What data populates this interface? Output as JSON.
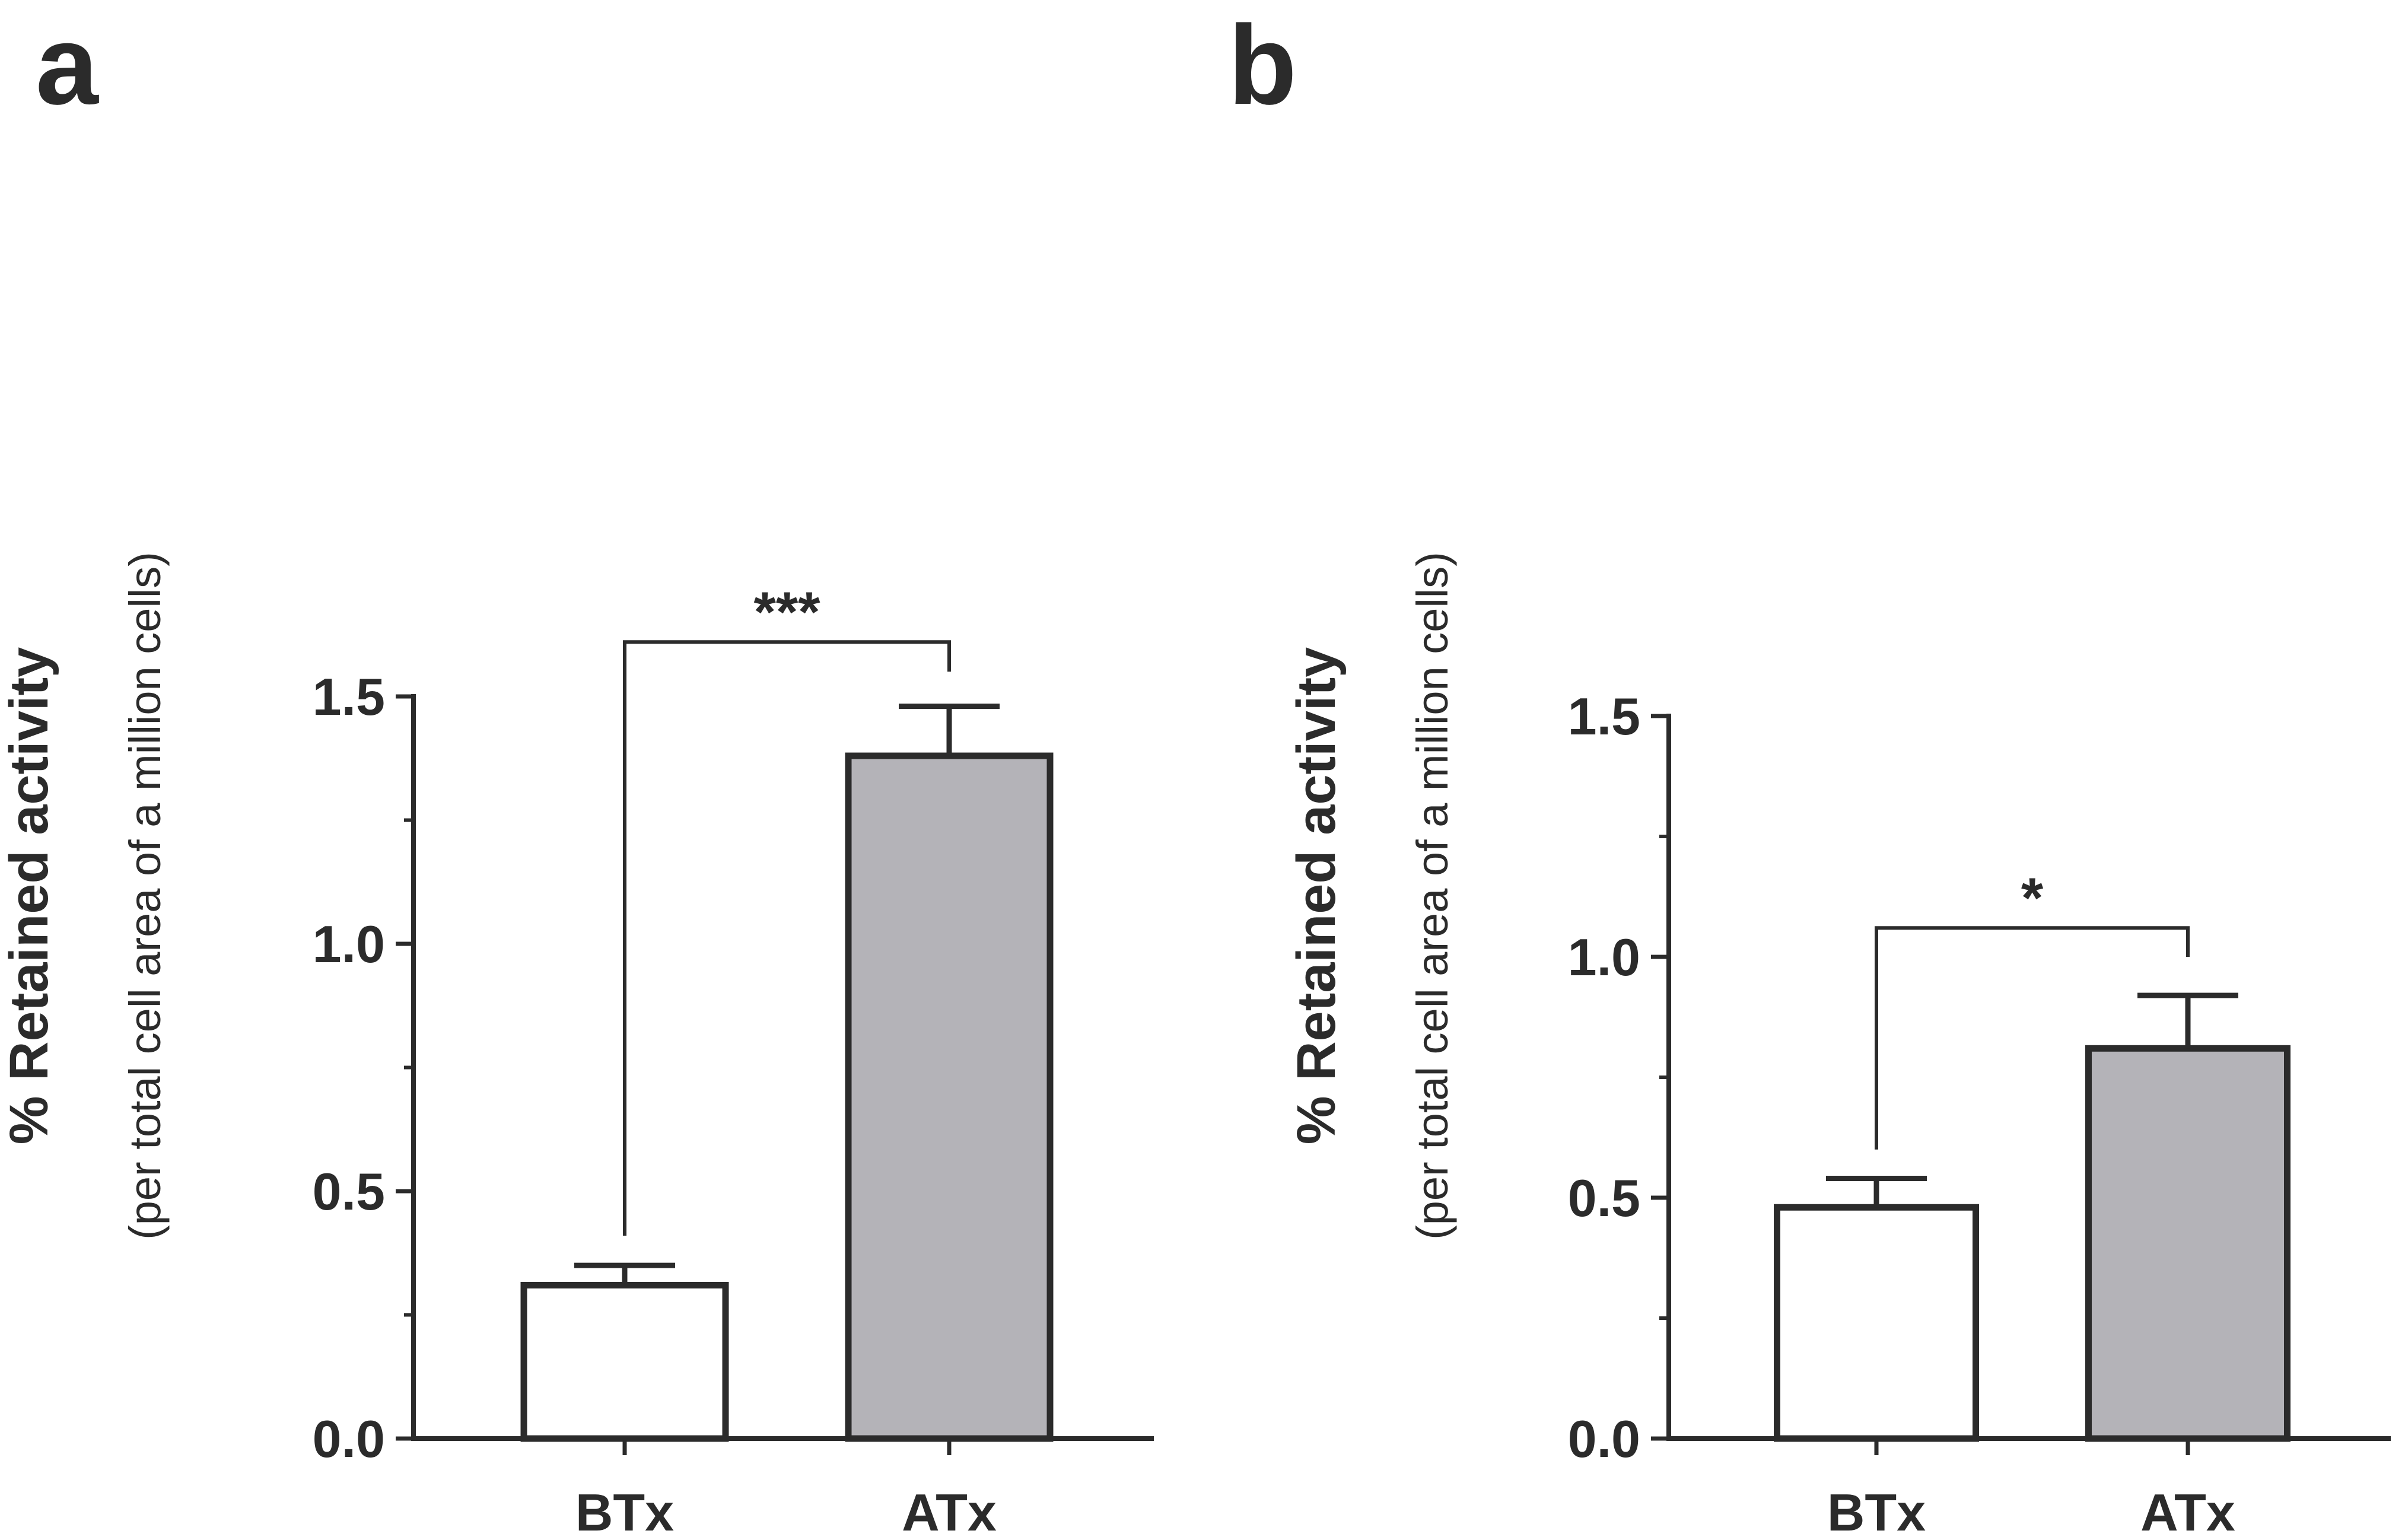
{
  "chart_data": [
    {
      "type": "bar",
      "panel_label": "a",
      "categories": [
        "BTx",
        "ATx"
      ],
      "values": [
        0.31,
        1.38
      ],
      "error_plus": [
        0.04,
        0.1
      ],
      "bar_colors": [
        "#ffffff",
        "#b4b3b8"
      ],
      "ylabel": "% Retained activity",
      "ylabel_sub": "(per total cell area of a million cells)",
      "ylim": [
        0,
        1.5
      ],
      "major_ticks": [
        0.0,
        0.5,
        1.0,
        1.5
      ],
      "tick_labels": [
        "0.0",
        "0.5",
        "1.0",
        "1.5"
      ],
      "minor_ticks": [
        0.25,
        0.75,
        1.25
      ],
      "significance": {
        "label": "***",
        "bracket_top": 1.61,
        "left_drop_to": 0.41,
        "right_drop_to": 1.55
      },
      "grid": false
    },
    {
      "type": "bar",
      "panel_label": "b",
      "categories": [
        "BTx",
        "ATx"
      ],
      "values": [
        0.48,
        0.81
      ],
      "error_plus": [
        0.06,
        0.11
      ],
      "bar_colors": [
        "#ffffff",
        "#b4b3b8"
      ],
      "ylabel": "% Retained activity",
      "ylabel_sub": "(per total cell area of a million cells)",
      "ylim": [
        0,
        1.5
      ],
      "major_ticks": [
        0.0,
        0.5,
        1.0,
        1.5
      ],
      "tick_labels": [
        "0.0",
        "0.5",
        "1.0",
        "1.5"
      ],
      "minor_ticks": [
        0.25,
        0.75,
        1.25
      ],
      "significance": {
        "label": "*",
        "bracket_top": 1.06,
        "left_drop_to": 0.6,
        "right_drop_to": 1.0
      },
      "grid": false
    }
  ],
  "style": {
    "axis_color": "#2b2b2b",
    "text_color": "#2b2b2b"
  }
}
